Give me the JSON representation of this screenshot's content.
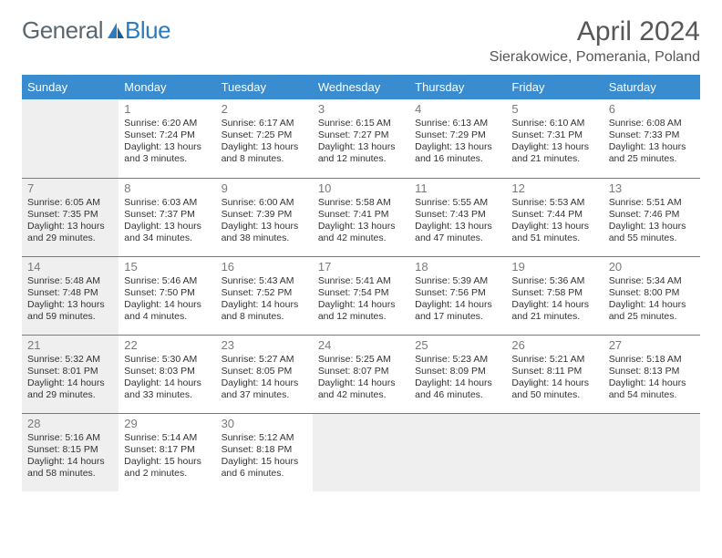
{
  "brand": {
    "word1": "General",
    "word2": "Blue"
  },
  "title": "April 2024",
  "location": "Sierakowice, Pomerania, Poland",
  "colors": {
    "header_bg": "#3a8cd0",
    "header_text": "#ffffff",
    "cell_border": "#3a8cd0",
    "shade_bg": "#efefef",
    "page_bg": "#ffffff",
    "text": "#333333",
    "title_text": "#575757",
    "daynum_text": "#7a7a7a",
    "logo_grey": "#5b6770",
    "logo_blue": "#2b7bbd"
  },
  "typography": {
    "title_fontsize": 30,
    "location_fontsize": 16,
    "header_fontsize": 13,
    "daynum_fontsize": 13,
    "body_fontsize": 10.5,
    "logo_fontsize": 26
  },
  "day_headers": [
    "Sunday",
    "Monday",
    "Tuesday",
    "Wednesday",
    "Thursday",
    "Friday",
    "Saturday"
  ],
  "weeks": [
    {
      "shade_first": false,
      "cells": [
        {
          "day": "",
          "lines": []
        },
        {
          "day": "1",
          "lines": [
            "Sunrise: 6:20 AM",
            "Sunset: 7:24 PM",
            "Daylight: 13 hours",
            "and 3 minutes."
          ]
        },
        {
          "day": "2",
          "lines": [
            "Sunrise: 6:17 AM",
            "Sunset: 7:25 PM",
            "Daylight: 13 hours",
            "and 8 minutes."
          ]
        },
        {
          "day": "3",
          "lines": [
            "Sunrise: 6:15 AM",
            "Sunset: 7:27 PM",
            "Daylight: 13 hours",
            "and 12 minutes."
          ]
        },
        {
          "day": "4",
          "lines": [
            "Sunrise: 6:13 AM",
            "Sunset: 7:29 PM",
            "Daylight: 13 hours",
            "and 16 minutes."
          ]
        },
        {
          "day": "5",
          "lines": [
            "Sunrise: 6:10 AM",
            "Sunset: 7:31 PM",
            "Daylight: 13 hours",
            "and 21 minutes."
          ]
        },
        {
          "day": "6",
          "lines": [
            "Sunrise: 6:08 AM",
            "Sunset: 7:33 PM",
            "Daylight: 13 hours",
            "and 25 minutes."
          ]
        }
      ]
    },
    {
      "shade_first": true,
      "cells": [
        {
          "day": "7",
          "lines": [
            "Sunrise: 6:05 AM",
            "Sunset: 7:35 PM",
            "Daylight: 13 hours",
            "and 29 minutes."
          ]
        },
        {
          "day": "8",
          "lines": [
            "Sunrise: 6:03 AM",
            "Sunset: 7:37 PM",
            "Daylight: 13 hours",
            "and 34 minutes."
          ]
        },
        {
          "day": "9",
          "lines": [
            "Sunrise: 6:00 AM",
            "Sunset: 7:39 PM",
            "Daylight: 13 hours",
            "and 38 minutes."
          ]
        },
        {
          "day": "10",
          "lines": [
            "Sunrise: 5:58 AM",
            "Sunset: 7:41 PM",
            "Daylight: 13 hours",
            "and 42 minutes."
          ]
        },
        {
          "day": "11",
          "lines": [
            "Sunrise: 5:55 AM",
            "Sunset: 7:43 PM",
            "Daylight: 13 hours",
            "and 47 minutes."
          ]
        },
        {
          "day": "12",
          "lines": [
            "Sunrise: 5:53 AM",
            "Sunset: 7:44 PM",
            "Daylight: 13 hours",
            "and 51 minutes."
          ]
        },
        {
          "day": "13",
          "lines": [
            "Sunrise: 5:51 AM",
            "Sunset: 7:46 PM",
            "Daylight: 13 hours",
            "and 55 minutes."
          ]
        }
      ]
    },
    {
      "shade_first": true,
      "cells": [
        {
          "day": "14",
          "lines": [
            "Sunrise: 5:48 AM",
            "Sunset: 7:48 PM",
            "Daylight: 13 hours",
            "and 59 minutes."
          ]
        },
        {
          "day": "15",
          "lines": [
            "Sunrise: 5:46 AM",
            "Sunset: 7:50 PM",
            "Daylight: 14 hours",
            "and 4 minutes."
          ]
        },
        {
          "day": "16",
          "lines": [
            "Sunrise: 5:43 AM",
            "Sunset: 7:52 PM",
            "Daylight: 14 hours",
            "and 8 minutes."
          ]
        },
        {
          "day": "17",
          "lines": [
            "Sunrise: 5:41 AM",
            "Sunset: 7:54 PM",
            "Daylight: 14 hours",
            "and 12 minutes."
          ]
        },
        {
          "day": "18",
          "lines": [
            "Sunrise: 5:39 AM",
            "Sunset: 7:56 PM",
            "Daylight: 14 hours",
            "and 17 minutes."
          ]
        },
        {
          "day": "19",
          "lines": [
            "Sunrise: 5:36 AM",
            "Sunset: 7:58 PM",
            "Daylight: 14 hours",
            "and 21 minutes."
          ]
        },
        {
          "day": "20",
          "lines": [
            "Sunrise: 5:34 AM",
            "Sunset: 8:00 PM",
            "Daylight: 14 hours",
            "and 25 minutes."
          ]
        }
      ]
    },
    {
      "shade_first": true,
      "cells": [
        {
          "day": "21",
          "lines": [
            "Sunrise: 5:32 AM",
            "Sunset: 8:01 PM",
            "Daylight: 14 hours",
            "and 29 minutes."
          ]
        },
        {
          "day": "22",
          "lines": [
            "Sunrise: 5:30 AM",
            "Sunset: 8:03 PM",
            "Daylight: 14 hours",
            "and 33 minutes."
          ]
        },
        {
          "day": "23",
          "lines": [
            "Sunrise: 5:27 AM",
            "Sunset: 8:05 PM",
            "Daylight: 14 hours",
            "and 37 minutes."
          ]
        },
        {
          "day": "24",
          "lines": [
            "Sunrise: 5:25 AM",
            "Sunset: 8:07 PM",
            "Daylight: 14 hours",
            "and 42 minutes."
          ]
        },
        {
          "day": "25",
          "lines": [
            "Sunrise: 5:23 AM",
            "Sunset: 8:09 PM",
            "Daylight: 14 hours",
            "and 46 minutes."
          ]
        },
        {
          "day": "26",
          "lines": [
            "Sunrise: 5:21 AM",
            "Sunset: 8:11 PM",
            "Daylight: 14 hours",
            "and 50 minutes."
          ]
        },
        {
          "day": "27",
          "lines": [
            "Sunrise: 5:18 AM",
            "Sunset: 8:13 PM",
            "Daylight: 14 hours",
            "and 54 minutes."
          ]
        }
      ]
    },
    {
      "shade_first": true,
      "cells": [
        {
          "day": "28",
          "lines": [
            "Sunrise: 5:16 AM",
            "Sunset: 8:15 PM",
            "Daylight: 14 hours",
            "and 58 minutes."
          ]
        },
        {
          "day": "29",
          "lines": [
            "Sunrise: 5:14 AM",
            "Sunset: 8:17 PM",
            "Daylight: 15 hours",
            "and 2 minutes."
          ]
        },
        {
          "day": "30",
          "lines": [
            "Sunrise: 5:12 AM",
            "Sunset: 8:18 PM",
            "Daylight: 15 hours",
            "and 6 minutes."
          ]
        },
        {
          "day": "",
          "lines": []
        },
        {
          "day": "",
          "lines": []
        },
        {
          "day": "",
          "lines": []
        },
        {
          "day": "",
          "lines": []
        }
      ]
    }
  ]
}
